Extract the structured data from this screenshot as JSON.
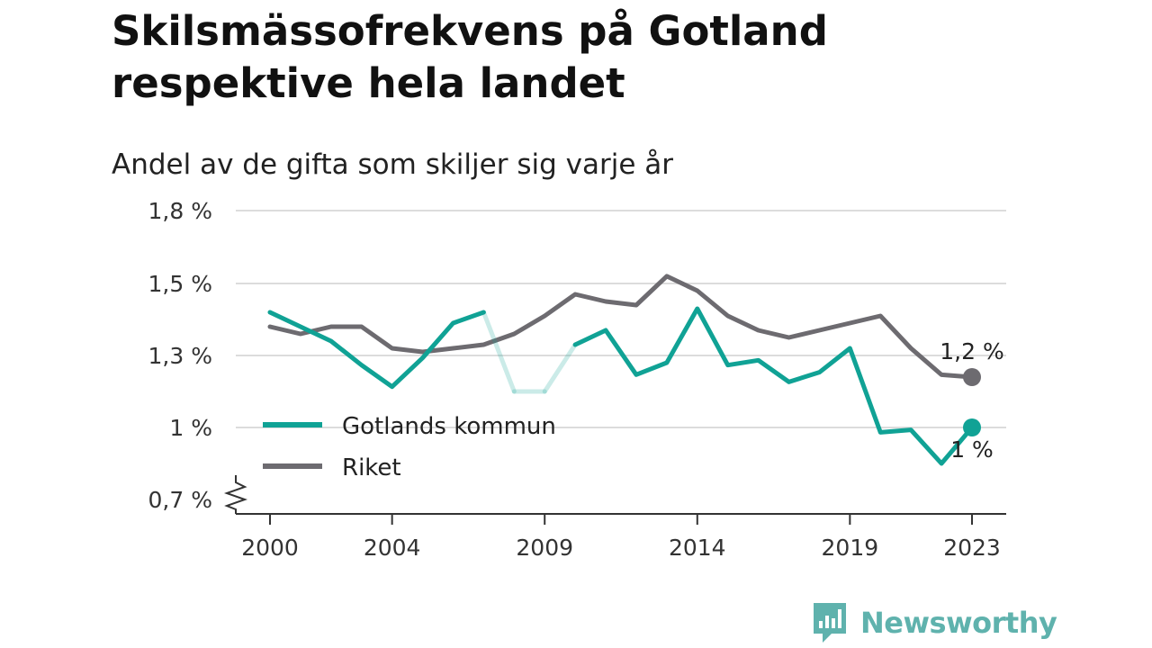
{
  "header": {
    "title": "Skilsmässofrekvens på Gotland respektive hela landet",
    "subtitle": "Andel av de gifta som skiljer sig varje år"
  },
  "brand": {
    "name": "Newsworthy",
    "icon": "newsworthy-logo-icon",
    "color": "#5fb2ad"
  },
  "chart_data": {
    "type": "line",
    "title": "Skilsmässofrekvens på Gotland respektive hela landet",
    "subtitle": "Andel av de gifta som skiljer sig varje år",
    "xlabel": "",
    "ylabel": "",
    "x": [
      2000,
      2001,
      2002,
      2003,
      2004,
      2005,
      2006,
      2007,
      2008,
      2009,
      2010,
      2011,
      2012,
      2013,
      2014,
      2015,
      2016,
      2017,
      2018,
      2019,
      2020,
      2021,
      2022,
      2023
    ],
    "x_ticks": [
      2000,
      2004,
      2009,
      2014,
      2019,
      2023
    ],
    "x_tick_labels": [
      "2000",
      "2004",
      "2009",
      "2014",
      "2019",
      "2023"
    ],
    "xlim": [
      1999,
      2024
    ],
    "y_ticks": [
      0.7,
      1.0,
      1.3,
      1.5,
      1.8
    ],
    "y_tick_labels": [
      "0,7 %",
      "1 %",
      "1,3 %",
      "1,5 %",
      "1,8 %"
    ],
    "ylim": [
      0.7,
      1.8
    ],
    "y_axis_break": true,
    "grid": true,
    "legend_position": "bottom-left",
    "series": [
      {
        "name": "Gotlands kommun",
        "color": "#10a295",
        "values": [
          1.42,
          1.38,
          1.34,
          1.26,
          1.17,
          1.29,
          1.39,
          1.42,
          1.15,
          1.15,
          1.33,
          1.37,
          1.22,
          1.27,
          1.43,
          1.26,
          1.28,
          1.19,
          1.23,
          1.32,
          0.98,
          0.99,
          0.85,
          1.0
        ],
        "imputed_years": [
          2008,
          2009
        ],
        "end_label": "1 %"
      },
      {
        "name": "Riket",
        "color": "#6d6b70",
        "values": [
          1.38,
          1.36,
          1.38,
          1.38,
          1.32,
          1.31,
          1.32,
          1.33,
          1.36,
          1.41,
          1.47,
          1.45,
          1.44,
          1.53,
          1.48,
          1.41,
          1.37,
          1.35,
          1.37,
          1.39,
          1.41,
          1.32,
          1.22,
          1.21
        ],
        "end_label": "1,2 %"
      }
    ]
  }
}
